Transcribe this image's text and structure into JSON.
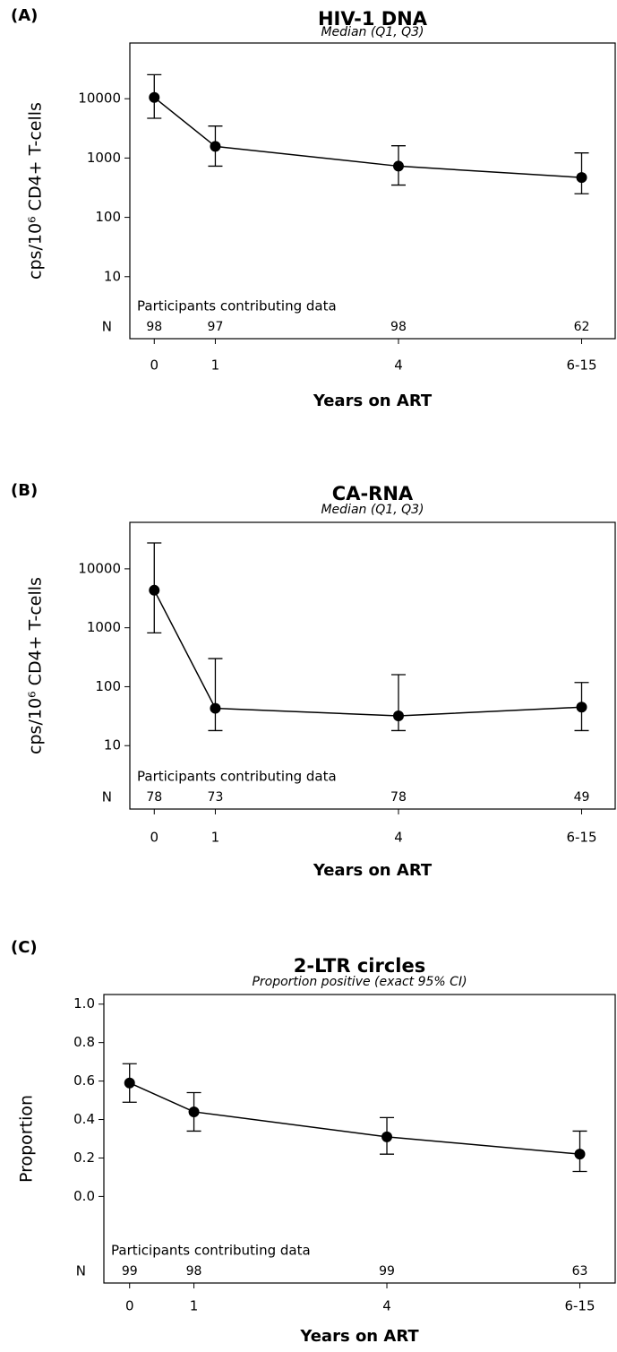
{
  "chart_data": [
    {
      "type": "line",
      "panel_label": "(A)",
      "title": "HIV-1 DNA",
      "subtitle": "Median (Q1, Q3)",
      "x_label": "Years on ART",
      "y_label": "cps/10⁶ CD4+ T-cells",
      "log_y": true,
      "color": "#000000",
      "x": [
        0,
        1,
        4,
        7
      ],
      "xlim": [
        -0.4,
        7.55
      ],
      "xticks": [
        0,
        1,
        4,
        {
          "value": 7,
          "label": "6-15"
        }
      ],
      "ylim": [
        0.9,
        87000
      ],
      "yticks": [
        10,
        100,
        1000,
        10000
      ],
      "values": [
        10500,
        1570,
        730,
        470
      ],
      "lower": [
        4680,
        730,
        350,
        250
      ],
      "upper": [
        25400,
        3460,
        1610,
        1220
      ],
      "n_title": "Participants contributing data",
      "n_label": "N",
      "n": [
        98,
        97,
        98,
        62
      ]
    },
    {
      "type": "line",
      "panel_label": "(B)",
      "title": "CA-RNA",
      "subtitle": "Median (Q1, Q3)",
      "x_label": "Years on ART",
      "y_label": "cps/10⁶ CD4+ T-cells",
      "log_y": true,
      "color": "#000000",
      "x": [
        0,
        1,
        4,
        7
      ],
      "xlim": [
        -0.4,
        7.55
      ],
      "xticks": [
        0,
        1,
        4,
        {
          "value": 7,
          "label": "6-15"
        }
      ],
      "ylim": [
        0.84,
        61500
      ],
      "yticks": [
        10,
        100,
        1000,
        10000
      ],
      "values": [
        4330,
        43,
        32,
        45
      ],
      "lower": [
        820,
        18,
        18,
        18
      ],
      "upper": [
        27500,
        300,
        160,
        118
      ],
      "n_title": "Participants contributing data",
      "n_label": "N",
      "n": [
        78,
        73,
        78,
        49
      ]
    },
    {
      "type": "line",
      "panel_label": "(C)",
      "title": "2-LTR circles",
      "subtitle": "Proportion positive (exact 95% CI)",
      "x_label": "Years on ART",
      "y_label": "Proportion",
      "log_y": false,
      "color": "#000000",
      "x": [
        0,
        1,
        4,
        7
      ],
      "xlim": [
        -0.4,
        7.55
      ],
      "xticks": [
        0,
        1,
        4,
        {
          "value": 7,
          "label": "6-15"
        }
      ],
      "ylim": [
        -0.45,
        1.05
      ],
      "yticks": [
        {
          "value": 0,
          "label": "0.0"
        },
        0.2,
        0.4,
        0.6,
        0.8,
        {
          "value": 1,
          "label": "1.0"
        }
      ],
      "values": [
        0.59,
        0.44,
        0.31,
        0.22
      ],
      "lower": [
        0.49,
        0.34,
        0.22,
        0.13
      ],
      "upper": [
        0.69,
        0.54,
        0.41,
        0.34
      ],
      "n_title": "Participants contributing data",
      "n_label": "N",
      "n": [
        99,
        98,
        99,
        63
      ]
    }
  ]
}
